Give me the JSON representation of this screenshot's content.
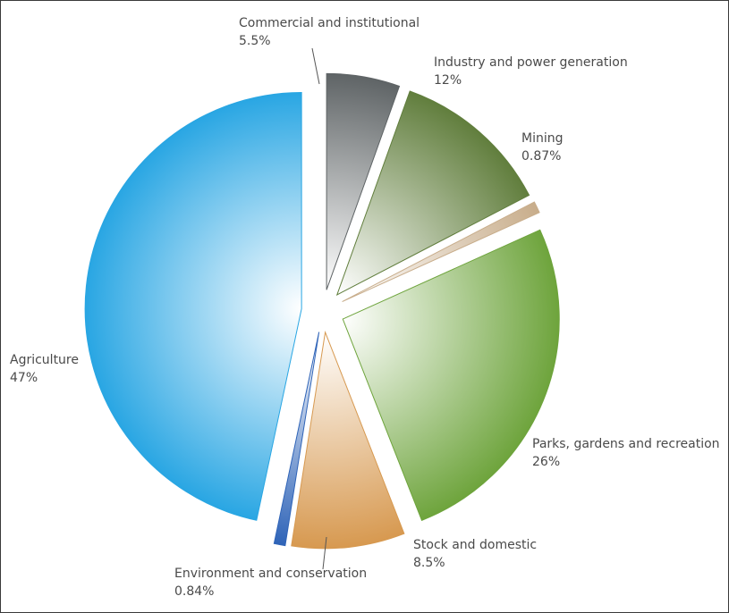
{
  "chart_data": {
    "type": "pie",
    "title": "",
    "legend": "none",
    "slices": [
      {
        "name": "Agriculture",
        "value": 47,
        "value_label": "47%",
        "color": "#29a6e3"
      },
      {
        "name": "Commercial and institutional",
        "value": 5.5,
        "value_label": "5.5%",
        "color": "#5f6466"
      },
      {
        "name": "Industry and power generation",
        "value": 12,
        "value_label": "12%",
        "color": "#617e3d"
      },
      {
        "name": "Mining",
        "value": 0.87,
        "value_label": "0.87%",
        "color": "#c8ad8b"
      },
      {
        "name": "Parks, gardens and recreation",
        "value": 26,
        "value_label": "26%",
        "color": "#6ea43c"
      },
      {
        "name": "Stock and domestic",
        "value": 8.5,
        "value_label": "8.5%",
        "color": "#d79950"
      },
      {
        "name": "Environment and conservation",
        "value": 0.84,
        "value_label": "0.84%",
        "color": "#2f64b8"
      }
    ]
  }
}
